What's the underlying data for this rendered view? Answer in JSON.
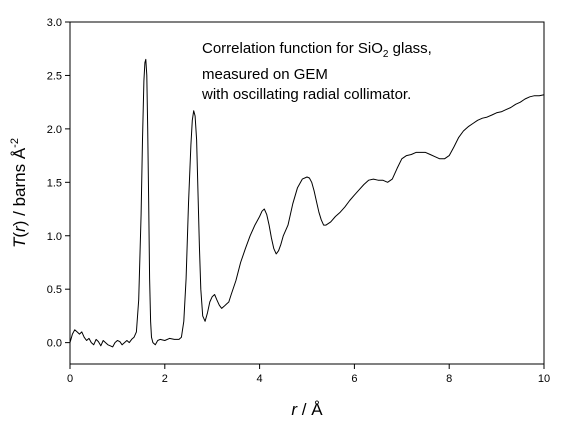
{
  "chart_data": {
    "type": "line",
    "title": "",
    "annotation": {
      "line1_pre": "Correlation function for SiO",
      "line1_sub": "2",
      "line1_post": " glass,",
      "line2": "measured on GEM",
      "line3": "with oscillating radial collimator."
    },
    "xlabel": {
      "var": "r",
      "sep": " / ",
      "unit": "Å"
    },
    "ylabel": {
      "var": "T",
      "open": "(",
      "arg": "r",
      "close": ")",
      "sep": " / barns Å",
      "sup": "-2"
    },
    "xlim": [
      0,
      10
    ],
    "ylim": [
      -0.2,
      3.0
    ],
    "xticks": [
      "0",
      "2",
      "4",
      "6",
      "8",
      "10"
    ],
    "yticks": [
      "0.0",
      "0.5",
      "1.0",
      "1.5",
      "2.0",
      "2.5",
      "3.0"
    ],
    "grid": false,
    "series": [
      {
        "color": "#000000",
        "x": [
          0.0,
          0.05,
          0.1,
          0.15,
          0.2,
          0.25,
          0.3,
          0.35,
          0.4,
          0.45,
          0.5,
          0.55,
          0.6,
          0.65,
          0.7,
          0.75,
          0.8,
          0.85,
          0.9,
          0.95,
          1.0,
          1.05,
          1.1,
          1.15,
          1.2,
          1.25,
          1.3,
          1.35,
          1.4,
          1.45,
          1.5,
          1.53,
          1.56,
          1.58,
          1.6,
          1.62,
          1.64,
          1.66,
          1.68,
          1.7,
          1.72,
          1.75,
          1.8,
          1.85,
          1.9,
          2.0,
          2.1,
          2.2,
          2.3,
          2.35,
          2.4,
          2.45,
          2.5,
          2.55,
          2.58,
          2.61,
          2.64,
          2.67,
          2.7,
          2.73,
          2.76,
          2.8,
          2.85,
          2.9,
          2.95,
          3.0,
          3.05,
          3.1,
          3.15,
          3.2,
          3.25,
          3.3,
          3.35,
          3.4,
          3.5,
          3.6,
          3.7,
          3.8,
          3.9,
          4.0,
          4.05,
          4.1,
          4.15,
          4.2,
          4.25,
          4.3,
          4.35,
          4.4,
          4.45,
          4.5,
          4.6,
          4.7,
          4.8,
          4.9,
          5.0,
          5.05,
          5.1,
          5.15,
          5.2,
          5.25,
          5.3,
          5.35,
          5.4,
          5.5,
          5.6,
          5.7,
          5.8,
          5.9,
          6.0,
          6.1,
          6.2,
          6.3,
          6.4,
          6.5,
          6.6,
          6.7,
          6.8,
          6.9,
          7.0,
          7.1,
          7.2,
          7.3,
          7.4,
          7.5,
          7.6,
          7.7,
          7.8,
          7.9,
          8.0,
          8.1,
          8.2,
          8.3,
          8.4,
          8.5,
          8.6,
          8.7,
          8.8,
          8.9,
          9.0,
          9.1,
          9.2,
          9.3,
          9.4,
          9.5,
          9.6,
          9.7,
          9.8,
          9.9,
          10.0
        ],
        "y": [
          0.0,
          0.08,
          0.12,
          0.1,
          0.08,
          0.1,
          0.05,
          0.02,
          0.04,
          0.0,
          -0.02,
          0.03,
          0.01,
          -0.03,
          0.02,
          0.0,
          -0.02,
          -0.03,
          -0.04,
          0.0,
          0.02,
          0.01,
          -0.02,
          0.0,
          0.02,
          0.0,
          0.03,
          0.05,
          0.1,
          0.4,
          1.2,
          1.9,
          2.45,
          2.62,
          2.65,
          2.5,
          2.0,
          1.3,
          0.6,
          0.2,
          0.05,
          0.0,
          -0.02,
          0.02,
          0.03,
          0.02,
          0.04,
          0.03,
          0.03,
          0.05,
          0.2,
          0.6,
          1.3,
          1.85,
          2.08,
          2.17,
          2.12,
          1.9,
          1.4,
          0.9,
          0.5,
          0.25,
          0.2,
          0.28,
          0.38,
          0.43,
          0.45,
          0.4,
          0.35,
          0.32,
          0.34,
          0.36,
          0.38,
          0.45,
          0.58,
          0.75,
          0.88,
          1.0,
          1.1,
          1.18,
          1.23,
          1.25,
          1.2,
          1.1,
          0.98,
          0.88,
          0.83,
          0.86,
          0.92,
          1.0,
          1.1,
          1.3,
          1.45,
          1.53,
          1.55,
          1.54,
          1.5,
          1.42,
          1.32,
          1.22,
          1.15,
          1.1,
          1.1,
          1.13,
          1.18,
          1.22,
          1.27,
          1.33,
          1.38,
          1.43,
          1.48,
          1.52,
          1.53,
          1.52,
          1.52,
          1.5,
          1.53,
          1.63,
          1.72,
          1.75,
          1.76,
          1.78,
          1.78,
          1.78,
          1.76,
          1.74,
          1.72,
          1.72,
          1.75,
          1.83,
          1.92,
          1.98,
          2.02,
          2.05,
          2.08,
          2.1,
          2.11,
          2.13,
          2.15,
          2.16,
          2.18,
          2.2,
          2.23,
          2.25,
          2.28,
          2.3,
          2.31,
          2.31,
          2.32
        ]
      }
    ]
  }
}
